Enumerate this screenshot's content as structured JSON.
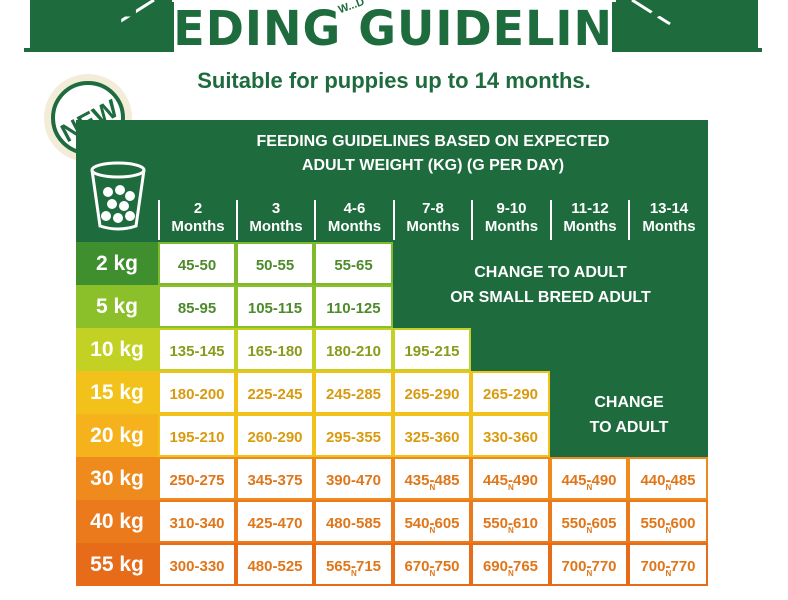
{
  "header": {
    "title": "FEEDING GUIDELINES",
    "subtitle": "Suitable for puppies up to 14 months.",
    "brand_fragment": "W...D",
    "badge": "NEW"
  },
  "table": {
    "heading_line1": "FEEDING GUIDELINES BASED ON EXPECTED",
    "heading_line2": "ADULT WEIGHT (KG) (G PER DAY)",
    "months": [
      {
        "num": "2",
        "unit": "Months"
      },
      {
        "num": "3",
        "unit": "Months"
      },
      {
        "num": "4-6",
        "unit": "Months"
      },
      {
        "num": "7-8",
        "unit": "Months"
      },
      {
        "num": "9-10",
        "unit": "Months"
      },
      {
        "num": "11-12",
        "unit": "Months"
      },
      {
        "num": "13-14",
        "unit": "Months"
      }
    ],
    "rows": [
      {
        "weight": "2 kg",
        "values": [
          "45-50",
          "50-55",
          "55-65"
        ]
      },
      {
        "weight": "5 kg",
        "values": [
          "85-95",
          "105-115",
          "110-125"
        ]
      },
      {
        "weight": "10 kg",
        "values": [
          "135-145",
          "165-180",
          "180-210",
          "195-215"
        ]
      },
      {
        "weight": "15 kg",
        "values": [
          "180-200",
          "225-245",
          "245-285",
          "265-290",
          "265-290"
        ]
      },
      {
        "weight": "20 kg",
        "values": [
          "195-210",
          "260-290",
          "295-355",
          "325-360",
          "330-360"
        ]
      },
      {
        "weight": "30 kg",
        "values": [
          "250-275",
          "345-375",
          "390-470",
          "435-485",
          "445-490",
          "445-490",
          "440-485"
        ]
      },
      {
        "weight": "40 kg",
        "values": [
          "310-340",
          "425-470",
          "480-585",
          "540-605",
          "550-610",
          "550-605",
          "550-600"
        ]
      },
      {
        "weight": "55 kg",
        "values": [
          "300-330",
          "480-525",
          "565-715",
          "670-750",
          "690-765",
          "700-770",
          "700-770"
        ]
      }
    ],
    "neutered_marker": "N",
    "note_small_line1": "CHANGE TO ADULT",
    "note_small_line2": "OR SMALL BREED ADULT",
    "note_adult_line1": "CHANGE",
    "note_adult_line2": "TO ADULT"
  },
  "colors": {
    "dark_green": "#1e6b3e",
    "light_green": "#7fba2c",
    "yellow_green": "#b8cf2a",
    "yellow": "#f2c21a",
    "orange": "#ef8a1c"
  }
}
